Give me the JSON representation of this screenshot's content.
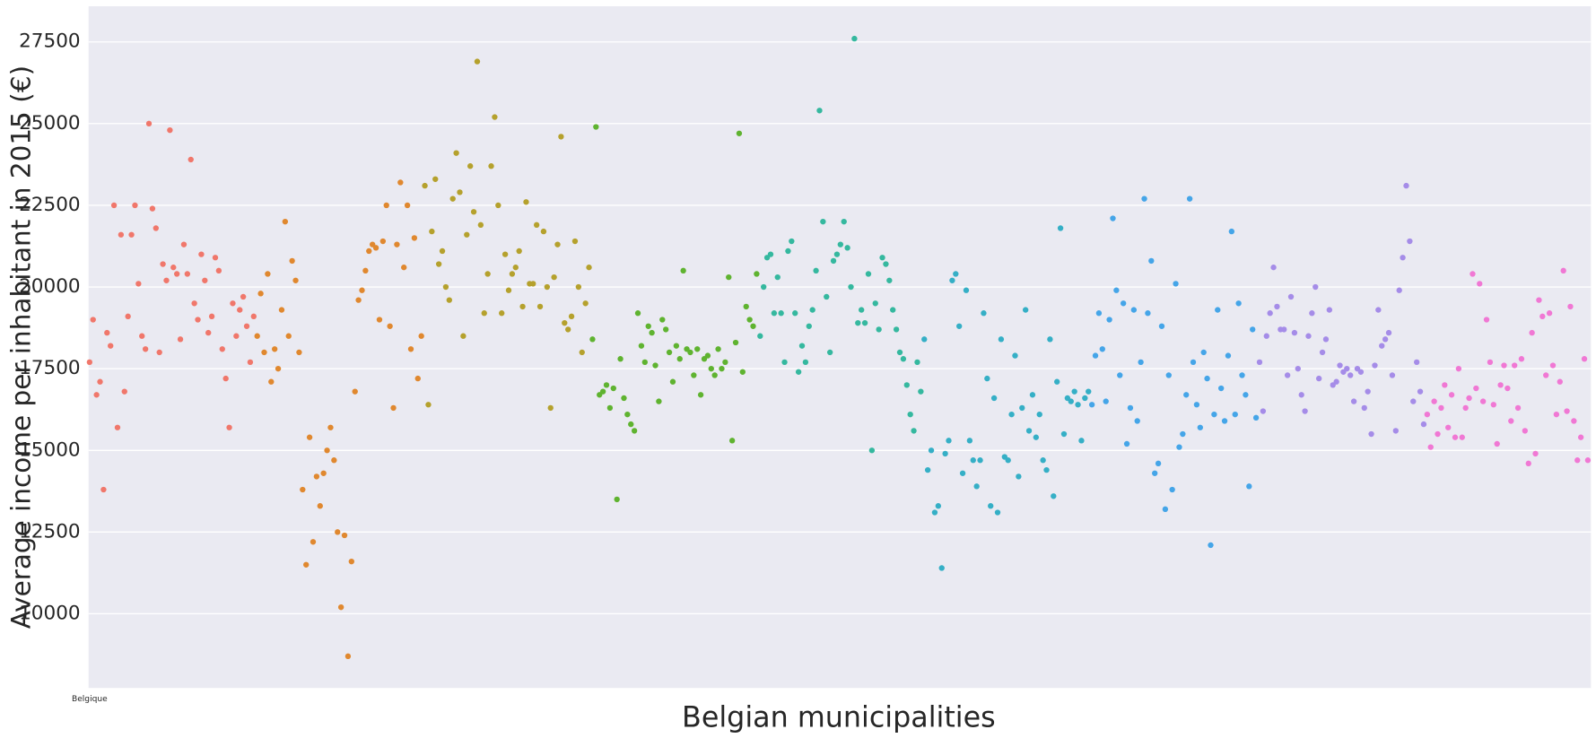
{
  "chart_data": {
    "type": "scatter",
    "y_label": "Average income per inhabitant in 2015 (€)",
    "x_label": "Belgian municipalities",
    "ylim": [
      7730,
      28590
    ],
    "yticks": [
      10000,
      12500,
      15000,
      17500,
      20000,
      22500,
      25000,
      27500
    ],
    "grid": true,
    "palette": [
      "#f0776b",
      "#e0882f",
      "#b5a12d",
      "#5fb330",
      "#35b89f",
      "#35afc6",
      "#45a5e8",
      "#a58ce8",
      "#f078d4"
    ],
    "categories": [
      "Belgique",
      null,
      null,
      null,
      null,
      null,
      null,
      null,
      null,
      null,
      null,
      null,
      null,
      null,
      null,
      null,
      null,
      null,
      null,
      null,
      null,
      null,
      null,
      null,
      null,
      null,
      null,
      null,
      null,
      null,
      null,
      null,
      null,
      null,
      null,
      null,
      null,
      null,
      null,
      null,
      null,
      null,
      null,
      null,
      null,
      null,
      null,
      null,
      null,
      null,
      null,
      null,
      null,
      null,
      null,
      null,
      null,
      null,
      null,
      null,
      null,
      null,
      null,
      null,
      null,
      null,
      null,
      null,
      null,
      null,
      null,
      null,
      null,
      null,
      null,
      null,
      null,
      null,
      null,
      null,
      null,
      null,
      null,
      null,
      null,
      null,
      null,
      null,
      null,
      null,
      null,
      null,
      null,
      null,
      null,
      null,
      null,
      null,
      null,
      null,
      null,
      null,
      null,
      null,
      null,
      null,
      null,
      null,
      null,
      null,
      null,
      null,
      null,
      null,
      null,
      null,
      null,
      null,
      null,
      null,
      null,
      null,
      null,
      null,
      null,
      null,
      null,
      null,
      null,
      null,
      null,
      null,
      null,
      null,
      null,
      null,
      null,
      null,
      null,
      null,
      null,
      null,
      null,
      null,
      null,
      null,
      null,
      null,
      null,
      null,
      null,
      null,
      null,
      null,
      null,
      null,
      null,
      null,
      null,
      null,
      null,
      null,
      null,
      null,
      null,
      null,
      null,
      null,
      null,
      null,
      null,
      null,
      null,
      null,
      null,
      null,
      null,
      null,
      null,
      null,
      null,
      null,
      null,
      null,
      null,
      null,
      null,
      null,
      null,
      null,
      null,
      null,
      null,
      null,
      null,
      null,
      null,
      null,
      null,
      null,
      null,
      null,
      null,
      null,
      null,
      null,
      null,
      null,
      null,
      null,
      null,
      null,
      null,
      null,
      null,
      null,
      null,
      null,
      null,
      null,
      null,
      null,
      null,
      null,
      null,
      null,
      null,
      null,
      null,
      null,
      null,
      null,
      null,
      null,
      null,
      null,
      null,
      null,
      null,
      null,
      null,
      null,
      null,
      null,
      null,
      null,
      null,
      null,
      null,
      null,
      null,
      null,
      null,
      null,
      null,
      null,
      null,
      null,
      null,
      null,
      null,
      null,
      null,
      null,
      null,
      null,
      null,
      null,
      null,
      null,
      null,
      null,
      null,
      null,
      null,
      null,
      null,
      null,
      null,
      null,
      null,
      null,
      null,
      null,
      null,
      null,
      null,
      null,
      null,
      null,
      null,
      null,
      null,
      null,
      null,
      null,
      null,
      null,
      null,
      null,
      null,
      null,
      null,
      null,
      null,
      null,
      null,
      null,
      null,
      null,
      null,
      null,
      null,
      null,
      null,
      null,
      null,
      null,
      null,
      null,
      null,
      null,
      null,
      null,
      null,
      null,
      null,
      null,
      null,
      null,
      null,
      null,
      null,
      null,
      null,
      null,
      null,
      null,
      null,
      null,
      null,
      null,
      null,
      null,
      null,
      null,
      null,
      null,
      null,
      null,
      null,
      null,
      null,
      null,
      null,
      null,
      null,
      null,
      null,
      null,
      null,
      null,
      null,
      null,
      null,
      null,
      null,
      null,
      null,
      null,
      null,
      null,
      null,
      null,
      null,
      null,
      null,
      null,
      null,
      null,
      null,
      null,
      null,
      null,
      null,
      null,
      null,
      null,
      null,
      null,
      null,
      null,
      null,
      null,
      null,
      null,
      null,
      null,
      null,
      null,
      null,
      null,
      null,
      null,
      null,
      null,
      null,
      null,
      null,
      null,
      null,
      null,
      null,
      null,
      null,
      null,
      null,
      null,
      null,
      null,
      null,
      null,
      null,
      null,
      null,
      null,
      null,
      null,
      null,
      null
    ],
    "values": [
      17700,
      19000,
      16700,
      17100,
      13800,
      18600,
      18200,
      22500,
      15700,
      21600,
      16800,
      19100,
      21600,
      22500,
      20100,
      18500,
      18100,
      25000,
      22400,
      21800,
      18000,
      20700,
      20200,
      24800,
      20600,
      20400,
      18400,
      21300,
      20400,
      23900,
      19500,
      19000,
      21000,
      20200,
      18600,
      19100,
      20900,
      20500,
      18100,
      17200,
      15700,
      19500,
      18500,
      19300,
      19700,
      18800,
      17700,
      19100,
      18500,
      19800,
      18000,
      20400,
      17100,
      18100,
      17500,
      19300,
      22000,
      18500,
      20800,
      20200,
      18000,
      13800,
      11500,
      15400,
      12200,
      14200,
      13300,
      14300,
      15000,
      15700,
      14700,
      12500,
      10200,
      12400,
      8700,
      11600,
      16800,
      19600,
      19900,
      20500,
      21100,
      21300,
      21200,
      19000,
      21400,
      22500,
      18800,
      16300,
      21300,
      23200,
      20600,
      22500,
      18100,
      21500,
      17200,
      18500,
      23100,
      16400,
      21700,
      23300,
      20700,
      21100,
      20000,
      19600,
      22700,
      24100,
      22900,
      18500,
      21600,
      23700,
      22300,
      26900,
      21900,
      19200,
      20400,
      23700,
      25200,
      22500,
      19200,
      21000,
      19900,
      20400,
      20600,
      21100,
      19400,
      22600,
      20100,
      20100,
      21900,
      19400,
      21700,
      20000,
      16300,
      20300,
      21300,
      24600,
      18900,
      18700,
      19100,
      21400,
      20000,
      18000,
      19500,
      20600,
      18400,
      24900,
      16700,
      16800,
      17000,
      16300,
      16900,
      13500,
      17800,
      16600,
      16100,
      15800,
      15600,
      19200,
      18200,
      17700,
      18800,
      18600,
      17600,
      16500,
      19000,
      18700,
      18000,
      17100,
      18200,
      17800,
      20500,
      18100,
      18000,
      17300,
      18100,
      16700,
      17800,
      17900,
      17500,
      17300,
      18100,
      17500,
      17700,
      20300,
      15300,
      18300,
      24700,
      17400,
      19400,
      19000,
      18800,
      20400,
      18500,
      20000,
      20900,
      21000,
      19200,
      20300,
      19200,
      17700,
      21100,
      21400,
      19200,
      17400,
      18200,
      17700,
      18800,
      19300,
      20500,
      25400,
      22000,
      19700,
      18000,
      20800,
      21000,
      21300,
      22000,
      21200,
      20000,
      27600,
      18900,
      19300,
      18900,
      20400,
      15000,
      19500,
      18700,
      20900,
      20700,
      20200,
      19300,
      18700,
      18000,
      17800,
      17000,
      16100,
      15600,
      17700,
      16800,
      18400,
      14400,
      15000,
      13100,
      13300,
      11400,
      14900,
      15300,
      20200,
      20400,
      18800,
      14300,
      19900,
      15300,
      14700,
      13900,
      14700,
      19200,
      17200,
      13300,
      16600,
      13100,
      18400,
      14800,
      14700,
      16100,
      17900,
      14200,
      16300,
      19300,
      15600,
      16700,
      15400,
      16100,
      14700,
      14400,
      18400,
      13600,
      17100,
      21800,
      15500,
      16600,
      16500,
      16800,
      16400,
      15300,
      16600,
      16800,
      16400,
      17900,
      19200,
      18100,
      16500,
      19000,
      22100,
      19900,
      17300,
      19500,
      15200,
      16300,
      19300,
      15900,
      17700,
      22700,
      19200,
      20800,
      14300,
      14600,
      18800,
      13200,
      17300,
      13800,
      20100,
      15100,
      15500,
      16700,
      22700,
      17700,
      16400,
      15700,
      18000,
      17200,
      12100,
      16100,
      19300,
      16900,
      15900,
      17900,
      21700,
      16100,
      19500,
      17300,
      16700,
      13900,
      18700,
      16000,
      17700,
      16200,
      18500,
      19200,
      20600,
      19400,
      18700,
      18700,
      17300,
      19700,
      18600,
      17500,
      16700,
      16200,
      18500,
      19200,
      20000,
      17200,
      18000,
      18400,
      19300,
      17000,
      17100,
      17600,
      17400,
      17500,
      17300,
      16500,
      17500,
      17400,
      16300,
      16800,
      15500,
      17600,
      19300,
      18200,
      18400,
      18600,
      17300,
      15600,
      19900,
      20900,
      23100,
      21400,
      16500,
      17700,
      16800,
      15800,
      16100,
      15100,
      16500,
      15500,
      16300,
      17000,
      15700,
      16700,
      15400,
      17500,
      15400,
      16300,
      16600,
      20400,
      16900,
      20100,
      16500,
      19000,
      17700,
      16400,
      15200,
      17000,
      17600,
      16900,
      15900,
      17600,
      16300,
      17800,
      15600,
      14600,
      18600,
      14900,
      19600,
      19100,
      17300,
      19200,
      17600,
      16100,
      17100,
      20500,
      16200,
      19400,
      15900,
      14700,
      15400,
      17800,
      14700
    ]
  }
}
